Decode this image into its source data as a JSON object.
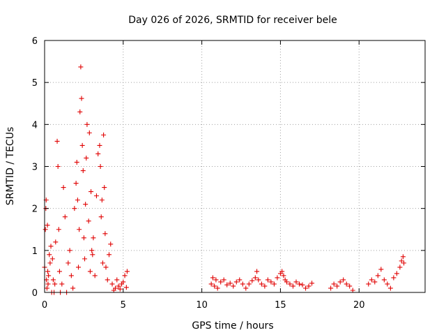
{
  "chart_data": {
    "type": "scatter",
    "title": "Day 026 of 2026, SRMTID for receiver bele",
    "xlabel": "GPS time / hours",
    "ylabel": "SRMTID / TECUs",
    "xlim": [
      0,
      24.2
    ],
    "ylim": [
      0,
      6
    ],
    "xticks": [
      "0",
      "5",
      "10",
      "15",
      "20"
    ],
    "xtick_values": [
      0,
      5,
      10,
      15,
      20
    ],
    "yticks": [
      "0",
      "1",
      "2",
      "3",
      "4",
      "5",
      "6"
    ],
    "ytick_values": [
      0,
      1,
      2,
      3,
      4,
      5,
      6
    ],
    "grid": true,
    "marker": "plus",
    "series": [
      {
        "name": "SRMTID",
        "color": "#e00000",
        "x": [
          0.0,
          0.05,
          0.08,
          0.1,
          0.12,
          0.15,
          0.18,
          0.2,
          0.22,
          0.25,
          0.3,
          0.35,
          0.4,
          0.45,
          0.5,
          0.55,
          0.6,
          0.65,
          0.7,
          0.8,
          0.85,
          0.9,
          0.95,
          1.0,
          1.1,
          1.2,
          1.3,
          1.4,
          1.5,
          1.6,
          1.7,
          1.8,
          1.9,
          2.0,
          2.05,
          2.1,
          2.15,
          2.2,
          2.25,
          2.3,
          2.35,
          2.4,
          2.45,
          2.5,
          2.55,
          2.6,
          2.65,
          2.7,
          2.8,
          2.85,
          2.9,
          2.95,
          3.0,
          3.05,
          3.1,
          3.2,
          3.3,
          3.4,
          3.5,
          3.55,
          3.6,
          3.65,
          3.7,
          3.75,
          3.8,
          3.85,
          3.9,
          4.0,
          4.1,
          4.2,
          4.3,
          4.4,
          4.5,
          4.6,
          4.7,
          4.8,
          4.9,
          5.0,
          5.1,
          5.2,
          5.25,
          10.6,
          10.7,
          10.8,
          10.9,
          11.0,
          11.2,
          11.4,
          11.6,
          11.8,
          12.0,
          12.2,
          12.4,
          12.6,
          12.8,
          13.0,
          13.2,
          13.4,
          13.5,
          13.6,
          13.8,
          14.0,
          14.2,
          14.4,
          14.6,
          14.8,
          15.0,
          15.1,
          15.2,
          15.3,
          15.4,
          15.6,
          15.8,
          16.0,
          16.2,
          16.4,
          16.6,
          16.8,
          17.0,
          18.2,
          18.4,
          18.6,
          18.8,
          19.0,
          19.2,
          19.4,
          19.6,
          20.6,
          20.8,
          21.0,
          21.2,
          21.4,
          21.6,
          21.8,
          22.0,
          22.2,
          22.4,
          22.6,
          22.7,
          22.8,
          22.85
        ],
        "y": [
          0.6,
          1.5,
          2.0,
          2.2,
          0.3,
          0.1,
          1.6,
          0.5,
          0.2,
          0.4,
          0.9,
          0.7,
          1.1,
          0.0,
          0.8,
          0.3,
          0.0,
          0.2,
          1.2,
          3.6,
          3.0,
          1.5,
          0.5,
          0.0,
          0.2,
          2.5,
          1.8,
          0.0,
          0.7,
          1.0,
          0.4,
          0.1,
          2.0,
          2.6,
          3.1,
          2.2,
          0.6,
          1.5,
          4.3,
          5.37,
          4.62,
          3.5,
          2.9,
          1.3,
          0.8,
          2.1,
          3.2,
          4.0,
          1.7,
          3.8,
          0.5,
          2.4,
          1.0,
          0.9,
          1.3,
          0.4,
          2.3,
          3.3,
          3.5,
          3.0,
          1.8,
          2.2,
          0.7,
          3.75,
          2.5,
          1.4,
          0.6,
          0.3,
          0.9,
          1.15,
          0.2,
          0.05,
          0.1,
          0.3,
          0.15,
          0.08,
          0.2,
          0.25,
          0.4,
          0.12,
          0.5,
          0.2,
          0.35,
          0.15,
          0.3,
          0.1,
          0.25,
          0.3,
          0.18,
          0.22,
          0.15,
          0.25,
          0.3,
          0.2,
          0.1,
          0.2,
          0.28,
          0.35,
          0.5,
          0.3,
          0.2,
          0.15,
          0.3,
          0.25,
          0.2,
          0.35,
          0.45,
          0.5,
          0.4,
          0.3,
          0.25,
          0.2,
          0.15,
          0.25,
          0.2,
          0.18,
          0.1,
          0.15,
          0.22,
          0.1,
          0.2,
          0.15,
          0.25,
          0.3,
          0.2,
          0.15,
          0.05,
          0.2,
          0.3,
          0.25,
          0.4,
          0.55,
          0.3,
          0.2,
          0.1,
          0.35,
          0.45,
          0.6,
          0.75,
          0.85,
          0.7
        ]
      }
    ]
  }
}
